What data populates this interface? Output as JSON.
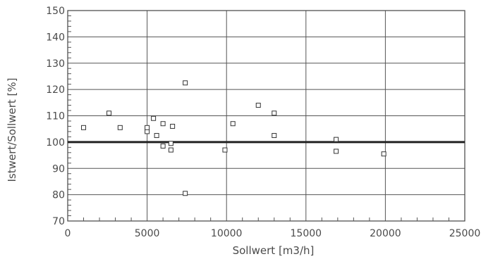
{
  "chart_data": {
    "type": "scatter",
    "title": "",
    "xlabel": "Sollwert [m3/h]",
    "ylabel": "Istwert/Sollwert [%]",
    "xlim": [
      0,
      25000
    ],
    "ylim": [
      70,
      150
    ],
    "x_ticks": [
      0,
      5000,
      10000,
      15000,
      20000,
      25000
    ],
    "y_ticks": [
      70,
      80,
      90,
      100,
      110,
      120,
      130,
      140,
      150
    ],
    "grid": true,
    "reference_line_y": 100,
    "marker": "open-square",
    "series": [
      {
        "points": [
          {
            "x": 1000,
            "y": 105.5
          },
          {
            "x": 2600,
            "y": 111
          },
          {
            "x": 3300,
            "y": 105.5
          },
          {
            "x": 5000,
            "y": 104
          },
          {
            "x": 5000,
            "y": 105.5
          },
          {
            "x": 5400,
            "y": 109
          },
          {
            "x": 5600,
            "y": 102.5
          },
          {
            "x": 6000,
            "y": 98.5
          },
          {
            "x": 6000,
            "y": 107
          },
          {
            "x": 6500,
            "y": 97
          },
          {
            "x": 6500,
            "y": 99.5
          },
          {
            "x": 6600,
            "y": 106
          },
          {
            "x": 7400,
            "y": 122.5
          },
          {
            "x": 7400,
            "y": 80.5
          },
          {
            "x": 9900,
            "y": 97
          },
          {
            "x": 10400,
            "y": 107
          },
          {
            "x": 12000,
            "y": 114
          },
          {
            "x": 13000,
            "y": 111
          },
          {
            "x": 13000,
            "y": 102.5
          },
          {
            "x": 16900,
            "y": 101
          },
          {
            "x": 16900,
            "y": 96.5
          },
          {
            "x": 19900,
            "y": 95.5
          }
        ]
      }
    ]
  }
}
